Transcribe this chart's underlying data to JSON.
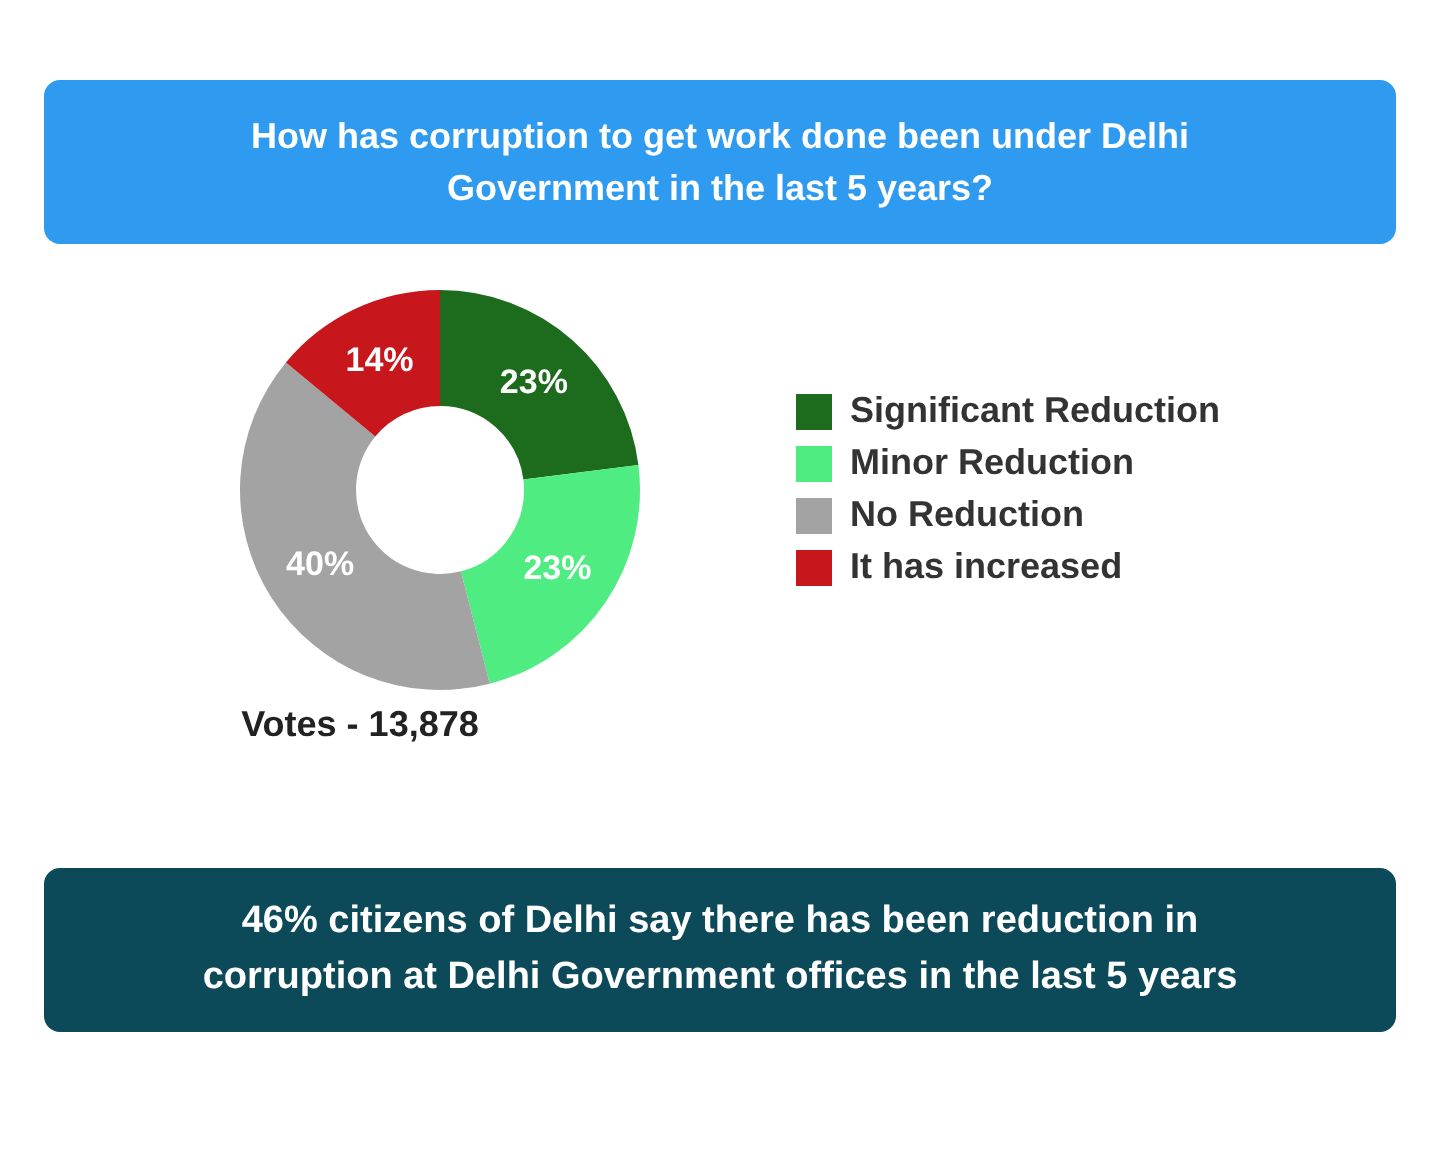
{
  "chart_data": {
    "type": "donut",
    "title": "How has corruption to get work done been under Delhi Government in the last 5 years?",
    "categories": [
      "Significant Reduction",
      "Minor Reduction",
      "No Reduction",
      "It has increased"
    ],
    "values": [
      23,
      23,
      40,
      14
    ],
    "colors": [
      "#1d6b1d",
      "#4fec82",
      "#a3a3a3",
      "#c8161d"
    ],
    "value_labels": [
      "23%",
      "23%",
      "40%",
      "14%"
    ],
    "legend": "right",
    "annotations": [
      "Votes - 13,878",
      "46% citizens of Delhi say there has been reduction in corruption at Delhi Government offices in the last 5 years"
    ]
  }
}
